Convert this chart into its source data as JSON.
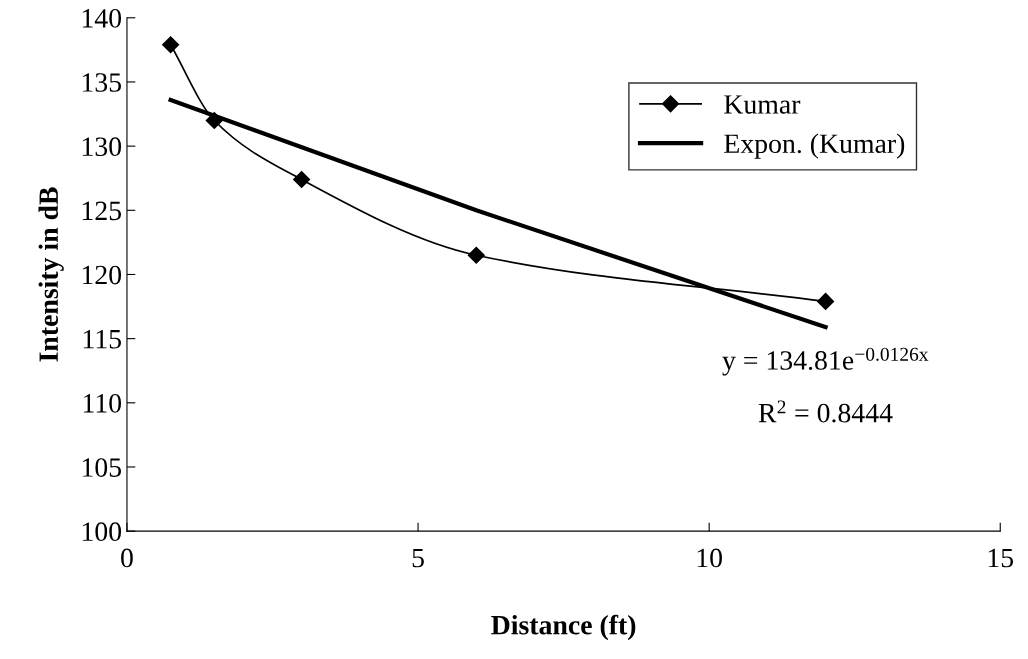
{
  "chart_data": {
    "type": "line",
    "xlabel": "Distance (ft)",
    "ylabel": "Intensity in dB",
    "xlim": [
      0,
      15
    ],
    "xticks": [
      0,
      5,
      10,
      15
    ],
    "ylim": [
      100,
      140
    ],
    "yticks": [
      100,
      105,
      110,
      115,
      120,
      125,
      130,
      135,
      140
    ],
    "series": [
      {
        "name": "Kumar",
        "color": "#000000",
        "marker": "diamond",
        "x": [
          0.75,
          1.5,
          3,
          6,
          12
        ],
        "values": [
          137.9,
          132.0,
          127.4,
          121.5,
          117.9
        ]
      },
      {
        "name": "Expon. (Kumar)",
        "color": "#000000",
        "marker": "none",
        "x": [
          0.75,
          6,
          12
        ],
        "values": [
          133.6,
          125.0,
          115.9
        ]
      }
    ],
    "annotations": [
      "y = 134.81e$^{−0.0126x}$",
      "R$^{2}$ = 0.8444"
    ],
    "legend": "top right",
    "grid": false
  }
}
